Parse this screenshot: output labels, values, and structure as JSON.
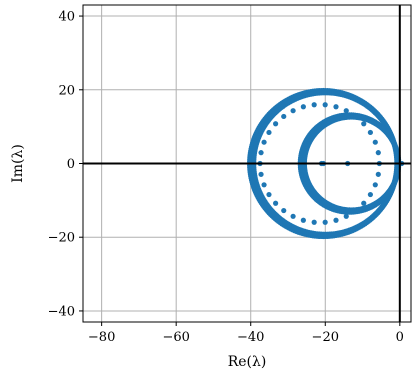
{
  "chart_data": {
    "type": "scatter",
    "title": "",
    "xlabel": "Re(λ)",
    "ylabel": "Im(λ)",
    "xlim": [
      -85,
      3
    ],
    "ylim": [
      -43,
      43
    ],
    "xticks": [
      -80,
      -60,
      -40,
      -20,
      0
    ],
    "yticks": [
      -40,
      -20,
      0,
      20,
      40
    ],
    "xtick_labels": [
      "−80",
      "−60",
      "−40",
      "−20",
      "0"
    ],
    "ytick_labels": [
      "−40",
      "−20",
      "0",
      "20",
      "40"
    ],
    "grid": true,
    "reference_lines": {
      "x": 0,
      "y": 0
    },
    "marker_color": "#1f77b4",
    "series": [
      {
        "shape": "circle",
        "center": [
          -20.5,
          0
        ],
        "radius": 19.8,
        "points": 220
      },
      {
        "shape": "circle",
        "center": [
          -20.0,
          0
        ],
        "radius": 19.2,
        "points": 220
      },
      {
        "shape": "circle",
        "center": [
          -21.5,
          0
        ],
        "radius": 16.0,
        "points": 34
      },
      {
        "shape": "circle",
        "center": [
          -13.5,
          0
        ],
        "radius": 13.2,
        "points": 160
      },
      {
        "shape": "circle",
        "center": [
          -13.0,
          0
        ],
        "radius": 12.6,
        "points": 160
      },
      {
        "shape": "points",
        "x": [
          -21,
          -20.5,
          -14,
          0,
          0.5
        ],
        "y": [
          0,
          0,
          0,
          0,
          0
        ]
      }
    ]
  }
}
